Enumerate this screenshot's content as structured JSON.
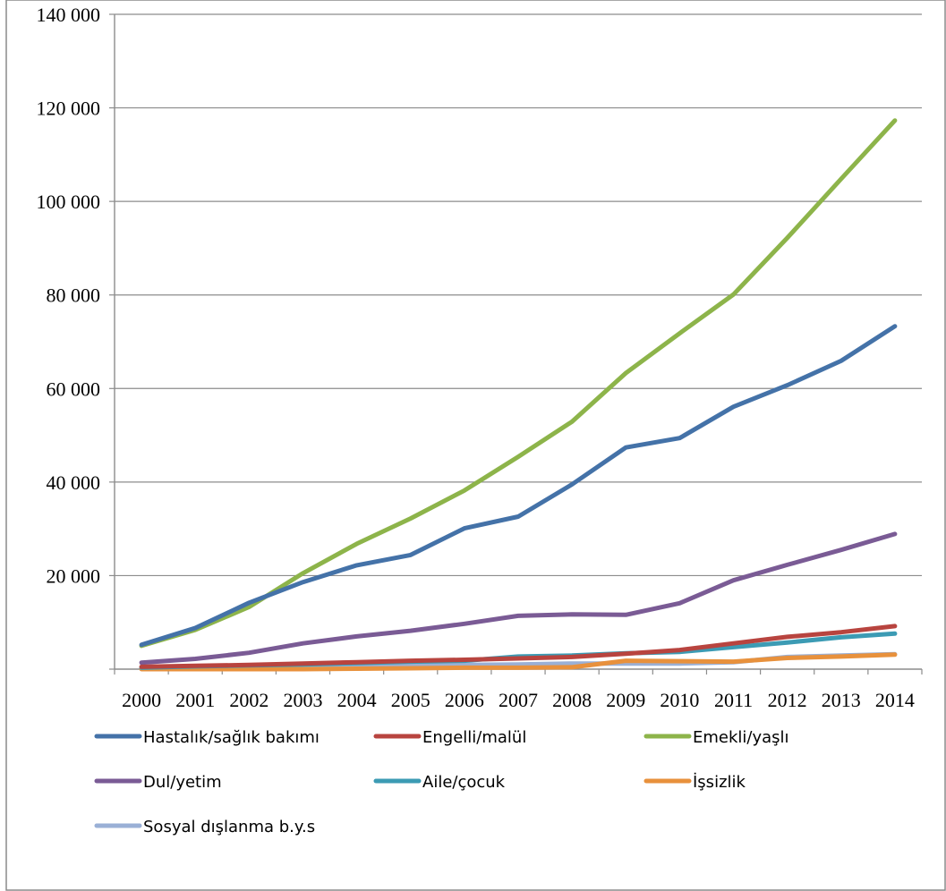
{
  "chart_data": {
    "type": "line",
    "title": "",
    "xlabel": "",
    "ylabel": "",
    "ylim": [
      0,
      140000
    ],
    "y_ticks": [
      "",
      "20 000",
      "40 000",
      "60 000",
      "80 000",
      "100 000",
      "120 000",
      "140 000"
    ],
    "y_tick_values": [
      0,
      20000,
      40000,
      60000,
      80000,
      100000,
      120000,
      140000
    ],
    "grid": true,
    "legend_position": "bottom",
    "x": [
      "2000",
      "2001",
      "2002",
      "2003",
      "2004",
      "2005",
      "2006",
      "2007",
      "2008",
      "2009",
      "2010",
      "2011",
      "2012",
      "2013",
      "2014"
    ],
    "series": [
      {
        "name": "Hastalık/sağlık bakımı",
        "color": "#4472A8",
        "values": [
          5200,
          8800,
          14200,
          18600,
          22200,
          24400,
          30100,
          32600,
          39500,
          47400,
          49400,
          56100,
          60700,
          65900,
          73300
        ]
      },
      {
        "name": "Engelli/malül",
        "color": "#B8443F",
        "values": [
          500,
          700,
          900,
          1200,
          1500,
          1800,
          2000,
          2300,
          2600,
          3300,
          4100,
          5500,
          6900,
          7900,
          9200
        ]
      },
      {
        "name": "Emekli/yaşlı",
        "color": "#8DB44A",
        "values": [
          5000,
          8400,
          13300,
          20500,
          26800,
          32200,
          38200,
          45400,
          52900,
          63300,
          71800,
          80100,
          92200,
          104800,
          117300
        ]
      },
      {
        "name": "Dul/yetim",
        "color": "#7A5B95",
        "values": [
          1400,
          2200,
          3500,
          5500,
          7000,
          8200,
          9700,
          11400,
          11700,
          11600,
          14100,
          19000,
          22300,
          25500,
          28900
        ]
      },
      {
        "name": "Aile/çocuk",
        "color": "#3C9BB4",
        "values": [
          300,
          600,
          800,
          1000,
          1300,
          1600,
          1800,
          2700,
          2900,
          3400,
          3700,
          4700,
          5700,
          6800,
          7600
        ]
      },
      {
        "name": "İşsizlik",
        "color": "#E8913C",
        "values": [
          0,
          0,
          0,
          0,
          100,
          200,
          300,
          300,
          400,
          1800,
          1700,
          1600,
          2400,
          2700,
          3100
        ]
      },
      {
        "name": "Sosyal dışlanma b.y.s",
        "color": "#9AB0D6",
        "values": [
          300,
          400,
          500,
          600,
          700,
          800,
          900,
          1000,
          1200,
          1200,
          1200,
          1500,
          2600,
          2900,
          3200
        ]
      }
    ]
  }
}
